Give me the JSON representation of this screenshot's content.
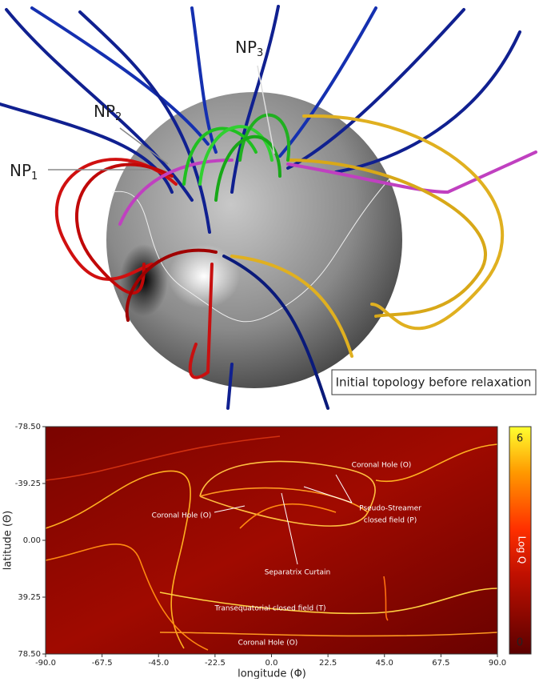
{
  "top_panel": {
    "labels": [
      {
        "text": "NP",
        "subscript": "1"
      },
      {
        "text": "NP",
        "subscript": "2"
      },
      {
        "text": "NP",
        "subscript": "3"
      }
    ],
    "caption": "Initial topology before relaxation"
  },
  "bottom_panel": {
    "xlabel": "longitude (Φ)",
    "ylabel": "latitude (Θ)",
    "xlim": [
      -90,
      90
    ],
    "ylim": [
      -78.5,
      78.5
    ],
    "xticks": [
      {
        "value": -90,
        "label": "-90.0"
      },
      -67.5,
      {
        "value": -45,
        "label": "-45.0"
      },
      -22.5,
      {
        "value": 0,
        "label": "0.0"
      },
      22.5,
      {
        "value": 45,
        "label": "45.0"
      },
      67.5,
      {
        "value": 90,
        "label": "90.0"
      }
    ],
    "yticks": [
      {
        "value": -78.5,
        "label": "-78.50"
      },
      -39.25,
      {
        "value": 0,
        "label": "0.00"
      },
      39.25,
      {
        "value": 78.5,
        "label": "78.50"
      }
    ],
    "colorbar": {
      "label": "Log Q",
      "lim": [
        0,
        6
      ],
      "ticks": [
        0,
        6
      ]
    },
    "annotations": [
      "Coronal Hole (O)",
      "Coronal Hole (O)",
      "Pseudo-Streamer",
      "closed field (P)",
      "Separatrix Curtain",
      "Transequatorial closed field (T)",
      "Coronal Hole (O)"
    ]
  }
}
